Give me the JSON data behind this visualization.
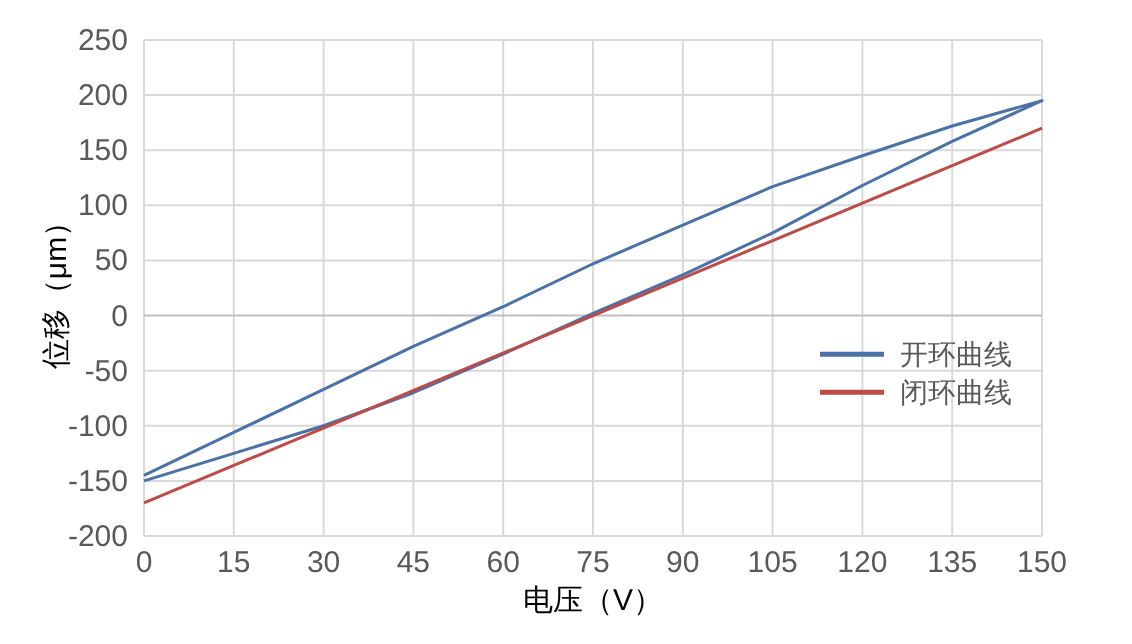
{
  "chart_data": {
    "type": "line",
    "xlabel": "电压（V）",
    "ylabel": "位移（μm）",
    "xlim": [
      0,
      150
    ],
    "xticks": [
      0,
      15,
      30,
      45,
      60,
      75,
      90,
      105,
      120,
      135,
      150
    ],
    "ylim": [
      -200,
      250
    ],
    "yticks": [
      -200,
      -150,
      -100,
      -50,
      0,
      50,
      100,
      150,
      200,
      250
    ],
    "grid": true,
    "legend": "right",
    "series": [
      {
        "name": "开环曲线",
        "color": "#4a72a8",
        "x": [
          0,
          15,
          30,
          45,
          60,
          75,
          90,
          105,
          120,
          135,
          150,
          135,
          120,
          105,
          90,
          75,
          60,
          45,
          30,
          15,
          0
        ],
        "values": [
          -150,
          -125,
          -100,
          -70,
          -35,
          2,
          37,
          75,
          118,
          158,
          195,
          172,
          145,
          117,
          82,
          47,
          8,
          -28,
          -67,
          -106,
          -145
        ]
      },
      {
        "name": "闭环曲线",
        "color": "#be4b48",
        "x": [
          0,
          75,
          150
        ],
        "values": [
          -170,
          0,
          170
        ]
      }
    ]
  }
}
